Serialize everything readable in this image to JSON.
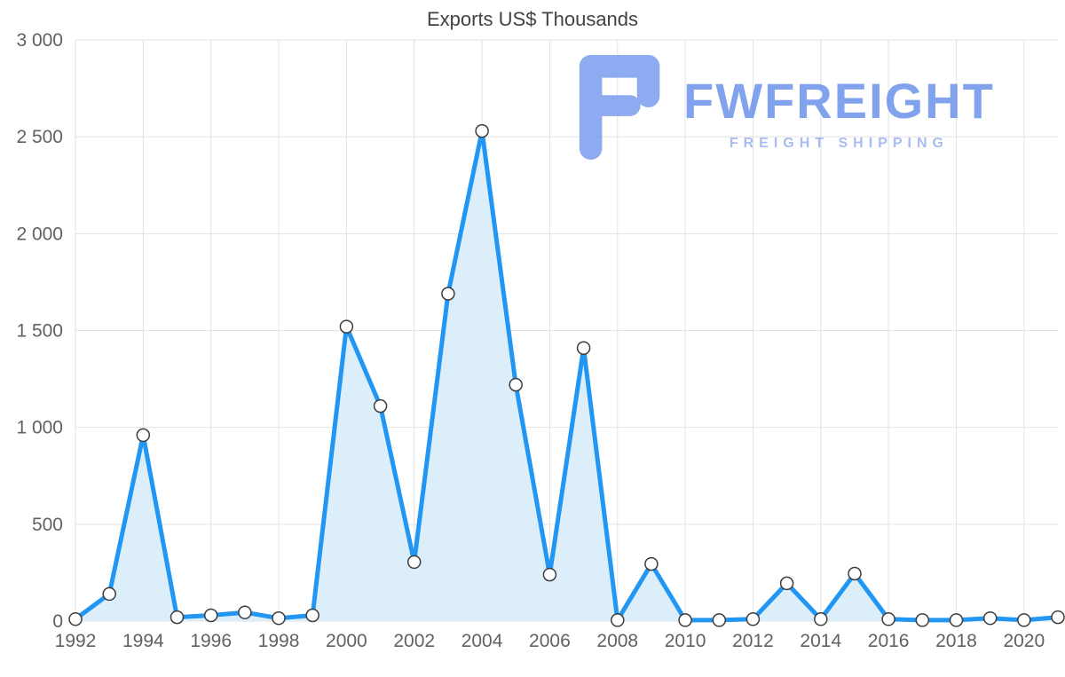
{
  "watermark": {
    "brand": "FWFREIGHT",
    "tagline": "FREIGHT SHIPPING",
    "brand_color": "#6c92ea",
    "tagline_color": "#9ab1ef",
    "icon_color": "#7b9cee"
  },
  "chart_data": {
    "type": "area",
    "title": "Exports US$ Thousands",
    "x": [
      1992,
      1993,
      1994,
      1995,
      1996,
      1997,
      1998,
      1999,
      2000,
      2001,
      2002,
      2003,
      2004,
      2005,
      2006,
      2007,
      2008,
      2009,
      2010,
      2011,
      2012,
      2013,
      2014,
      2015,
      2016,
      2017,
      2018,
      2019,
      2020,
      2021
    ],
    "values": [
      10,
      140,
      960,
      20,
      30,
      45,
      15,
      30,
      1520,
      1110,
      305,
      1690,
      2530,
      1220,
      240,
      1410,
      5,
      295,
      5,
      5,
      10,
      195,
      10,
      245,
      10,
      5,
      5,
      15,
      5,
      20
    ],
    "xlabel": "",
    "ylabel": "",
    "ylim": [
      0,
      3000
    ],
    "ytick_interval": 500,
    "ytick_labels": [
      "0",
      "500",
      "1 000",
      "1 500",
      "2 000",
      "2 500",
      "3 000"
    ],
    "xticks": [
      1992,
      1994,
      1996,
      1998,
      2000,
      2002,
      2004,
      2006,
      2008,
      2010,
      2012,
      2014,
      2016,
      2018,
      2020
    ],
    "grid": true,
    "legend": "none",
    "colors": {
      "line": "#2196f3",
      "fill": "#ddeefb",
      "grid": "#e2e2e2",
      "tick_text": "#616161",
      "title_text": "#424242",
      "marker_fill": "#ffffff",
      "marker_stroke": "#3c3c3c"
    }
  }
}
